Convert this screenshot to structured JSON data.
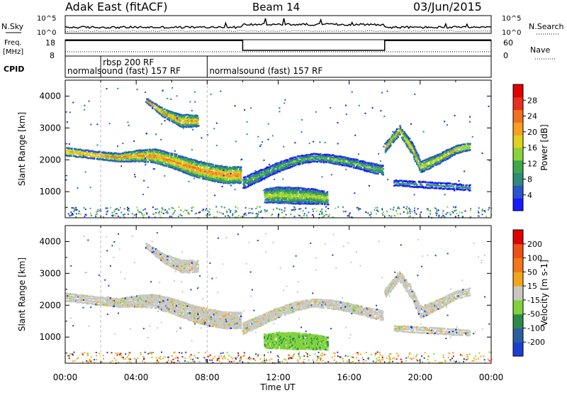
{
  "chart_data": {
    "type": "heatmap",
    "header": {
      "site": "Adak East (fitACF)",
      "beam": "Beam 14",
      "date": "03/Jun/2015"
    },
    "noise_panel": {
      "left_label": "N.Sky",
      "right_label": "N.Search",
      "left_ticks": [
        "10^5",
        "10^0"
      ],
      "right_ticks": [
        "10^5",
        "10^0"
      ]
    },
    "freq_panel": {
      "left_label_line1": "Freq.",
      "left_label_line2": "[MHz]",
      "right_label": "Nave",
      "left_ticks": [
        "18",
        "8"
      ],
      "right_ticks": [
        "60",
        "0"
      ],
      "freq_steps": [
        {
          "from_hour": 0,
          "to_hour": 10,
          "value": 17.5
        },
        {
          "from_hour": 10,
          "to_hour": 18,
          "value": 11.5
        },
        {
          "from_hour": 18,
          "to_hour": 24,
          "value": 17.5
        }
      ]
    },
    "cpid_panel": {
      "label": "CPID",
      "entries": [
        {
          "hour": 2.0,
          "text": "rbsp 200 RF",
          "row": 0
        },
        {
          "hour": 0.0,
          "text": "normalsound (fast) 157 RF",
          "row": 1
        },
        {
          "hour": 8.0,
          "text": "normalsound (fast) 157 RF",
          "row": 1
        }
      ]
    },
    "x_axis": {
      "label": "Time UT",
      "range_hours": [
        0,
        24
      ],
      "ticks": [
        "00:00",
        "04:00",
        "08:00",
        "12:00",
        "16:00",
        "20:00",
        "00:00"
      ]
    },
    "panels": [
      {
        "name": "power",
        "ylabel": "Slant Range [km]",
        "ylim": [
          180,
          4500
        ],
        "yticks": [
          1000,
          2000,
          3000,
          4000
        ],
        "colorbar": {
          "label": "Power [dB]",
          "ticks": [
            "4",
            "8",
            "12",
            "16",
            "20",
            "24",
            "28"
          ],
          "colors": [
            "#1a1aff",
            "#2a55cc",
            "#2e8a7a",
            "#3fa84a",
            "#8ad23a",
            "#e0d020",
            "#f5a020",
            "#f07020",
            "#e83020",
            "#e00000"
          ]
        }
      },
      {
        "name": "velocity",
        "ylabel": "Slant Range [km]",
        "ylim": [
          180,
          4500
        ],
        "yticks": [
          1000,
          2000,
          3000,
          4000
        ],
        "colorbar": {
          "label": "Velocity [m s-1]",
          "ticks": [
            "200",
            "100",
            "50",
            "15",
            "-15",
            "-50",
            "-100",
            "-200"
          ],
          "colors": [
            "#1a3fd0",
            "#2a5fa0",
            "#2c8a4a",
            "#7fd23a",
            "#c8c8c0",
            "#f2a51c",
            "#f07818",
            "#f05018",
            "#e00000"
          ]
        }
      }
    ],
    "echo_bands": [
      {
        "name": "main-band",
        "hours": [
          0,
          1,
          2,
          3,
          4,
          5,
          6,
          7,
          8,
          9,
          9.9
        ],
        "range_km": [
          2280,
          2220,
          2150,
          2100,
          2150,
          2150,
          2000,
          1800,
          1650,
          1550,
          1550
        ],
        "width_km": [
          110,
          110,
          110,
          120,
          160,
          200,
          220,
          240,
          250,
          250,
          240
        ],
        "peak_db": 22
      },
      {
        "name": "main-band-after-10ut",
        "hours": [
          10,
          11,
          12,
          13,
          14,
          15,
          16,
          17,
          17.9
        ],
        "range_km": [
          1300,
          1550,
          1800,
          2000,
          2100,
          2050,
          1950,
          1800,
          1700
        ],
        "width_km": [
          160,
          150,
          140,
          120,
          110,
          120,
          120,
          130,
          140
        ],
        "peak_db": 12
      },
      {
        "name": "upper-patch",
        "hours": [
          4.5,
          5.5,
          6.5,
          7.0,
          7.5
        ],
        "range_km": [
          3900,
          3500,
          3250,
          3250,
          3250
        ],
        "width_km": [
          60,
          120,
          180,
          180,
          160
        ],
        "peak_db": 20
      },
      {
        "name": "lower-patch",
        "hours": [
          11.2,
          12,
          13,
          14,
          14.8
        ],
        "range_km": [
          900,
          920,
          900,
          870,
          820
        ],
        "width_km": [
          200,
          240,
          240,
          220,
          180
        ],
        "peak_db": 16
      },
      {
        "name": "evening-band",
        "hours": [
          18,
          18.8,
          19.5,
          20,
          21,
          22,
          22.8
        ],
        "range_km": [
          2400,
          2950,
          2400,
          1800,
          2050,
          2350,
          2450
        ],
        "width_km": [
          120,
          130,
          170,
          160,
          140,
          110,
          100
        ],
        "peak_db": 18
      },
      {
        "name": "evening-lower",
        "hours": [
          18.5,
          20,
          21.5,
          22.8
        ],
        "range_km": [
          1300,
          1250,
          1200,
          1150
        ],
        "width_km": [
          70,
          80,
          80,
          70
        ],
        "peak_db": 8
      }
    ]
  }
}
